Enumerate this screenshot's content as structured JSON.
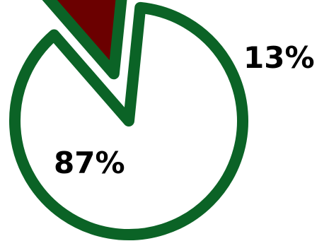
{
  "chart_data": {
    "type": "pie",
    "title": "",
    "slices": [
      {
        "label": "87%",
        "value": 87,
        "fill": "#ffffff",
        "exploded": false
      },
      {
        "label": "13%",
        "value": 13,
        "fill": "#6b0000",
        "exploded": true
      }
    ],
    "colors": {
      "outline": "#0b6326",
      "background": "#ffffff"
    },
    "legend": "none"
  }
}
